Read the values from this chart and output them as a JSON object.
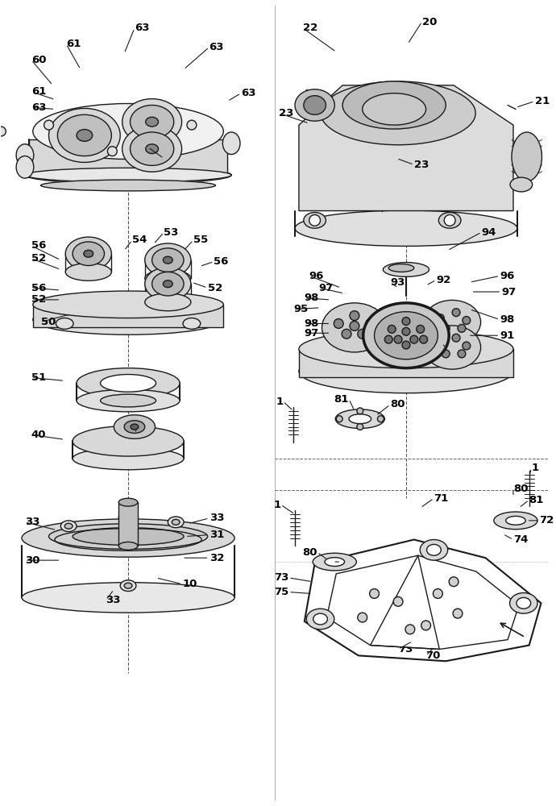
{
  "bg_color": "#ffffff",
  "line_color": "#1a1a1a",
  "label_color": "#000000",
  "label_fontsize": 9.5,
  "label_fontweight": "bold",
  "figsize": [
    6.9,
    10.0
  ],
  "dpi": 100
}
